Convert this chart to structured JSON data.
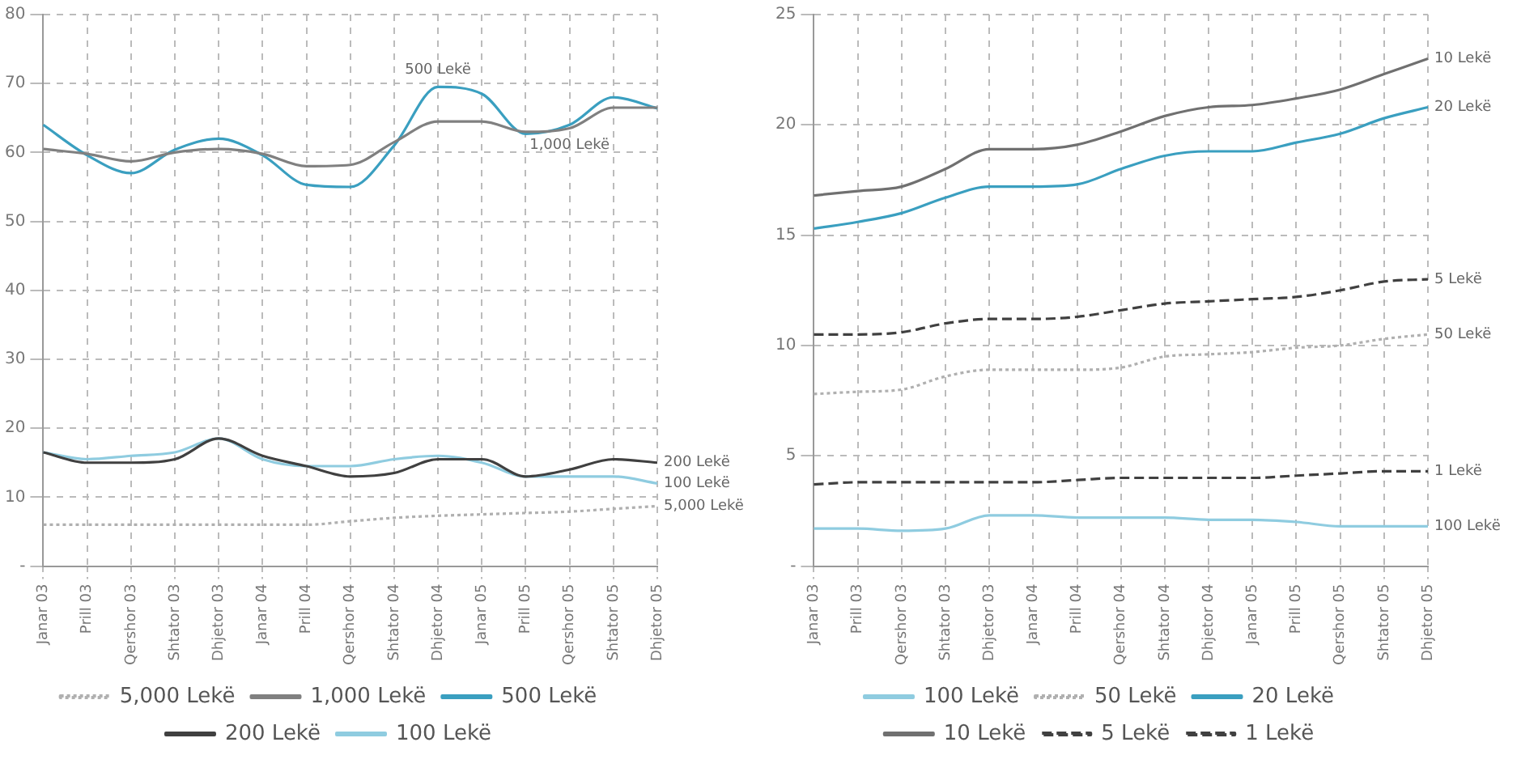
{
  "chart_data": [
    {
      "type": "line",
      "categories": [
        "Janar 03",
        "Prill 03",
        "Qershor 03",
        "Shtator 03",
        "Dhjetor 03",
        "Janar 04",
        "Prill 04",
        "Qershor 04",
        "Shtator 04",
        "Dhjetor 04",
        "Janar 05",
        "Prill 05",
        "Qershor 05",
        "Shtator 05",
        "Dhjetor 05"
      ],
      "series": [
        {
          "name": "5,000 Lekë",
          "color": "#b0b0b0",
          "line_style": "dotted",
          "values": [
            6,
            6,
            6,
            6,
            6,
            6,
            6,
            6.5,
            7,
            7.3,
            7.5,
            7.7,
            7.9,
            8.3,
            8.7
          ]
        },
        {
          "name": "1,000 Lekë",
          "color": "#808080",
          "line_style": "solid",
          "values": [
            60.5,
            59.8,
            58.7,
            60,
            60.5,
            59.8,
            58,
            58.2,
            61.5,
            64.5,
            64.5,
            63,
            63.5,
            66.5,
            66.5
          ]
        },
        {
          "name": "500 Lekë",
          "color": "#3a9fc0",
          "line_style": "solid",
          "values": [
            64,
            59.6,
            57,
            60.4,
            62,
            59.6,
            55.3,
            55,
            61,
            69.5,
            68.5,
            62.7,
            64,
            68,
            66.4
          ]
        },
        {
          "name": "200 Lekë",
          "color": "#404040",
          "line_style": "solid",
          "values": [
            16.5,
            15,
            15,
            15.5,
            18.5,
            16,
            14.5,
            13,
            13.5,
            15.5,
            15.5,
            13,
            14,
            15.5,
            15
          ]
        },
        {
          "name": "100 Lekë",
          "color": "#8fcce0",
          "line_style": "solid",
          "values": [
            16.5,
            15.5,
            16,
            16.5,
            18.5,
            15.5,
            14.5,
            14.5,
            15.5,
            16,
            15,
            13,
            13,
            13,
            12
          ]
        }
      ],
      "ylim": [
        0,
        80
      ],
      "yticks": [
        {
          "value": 0,
          "label": "-"
        },
        10,
        20,
        30,
        40,
        50,
        60,
        70,
        80
      ],
      "grid": true,
      "legend": "bottom",
      "marker": "none",
      "annotations": [
        {
          "text": "500 Lekë",
          "x": "Dhjetor 04",
          "y": 69.5
        },
        {
          "text": "1,000 Lekë",
          "x": "Qershor 05",
          "y": 63.5
        },
        {
          "text": "200 Lekë",
          "x": "Dhjetor 05",
          "y": 15
        },
        {
          "text": "100 Lekë",
          "x": "Dhjetor 05",
          "y": 12
        },
        {
          "text": "5,000 Lekë",
          "x": "Dhjetor 05",
          "y": 8.7
        }
      ]
    },
    {
      "type": "line",
      "categories": [
        "Janar 03",
        "Prill 03",
        "Qershor 03",
        "Shtator 03",
        "Dhjetor 03",
        "Janar 04",
        "Prill 04",
        "Qershor 04",
        "Shtator 04",
        "Dhjetor 04",
        "Janar 05",
        "Prill 05",
        "Qershor 05",
        "Shtator 05",
        "Dhjetor 05"
      ],
      "series": [
        {
          "name": "100 Lekë",
          "color": "#8fcce0",
          "line_style": "solid",
          "values": [
            1.7,
            1.7,
            1.6,
            1.7,
            2.3,
            2.3,
            2.2,
            2.2,
            2.2,
            2.1,
            2.1,
            2,
            1.8,
            1.8,
            1.8
          ]
        },
        {
          "name": "50 Lekë",
          "color": "#b0b0b0",
          "line_style": "dotted",
          "values": [
            7.8,
            7.9,
            8,
            8.6,
            8.9,
            8.9,
            8.9,
            9,
            9.5,
            9.6,
            9.7,
            9.9,
            10,
            10.3,
            10.5
          ]
        },
        {
          "name": "20 Lekë",
          "color": "#3a9fc0",
          "line_style": "solid",
          "values": [
            15.3,
            15.6,
            16,
            16.7,
            17.2,
            17.2,
            17.3,
            18,
            18.6,
            18.8,
            18.8,
            19.2,
            19.6,
            20.3,
            20.8
          ]
        },
        {
          "name": "10 Lekë",
          "color": "#707070",
          "line_style": "solid",
          "values": [
            16.8,
            17,
            17.2,
            18,
            18.9,
            18.9,
            19.1,
            19.7,
            20.4,
            20.8,
            20.9,
            21.2,
            21.6,
            22.3,
            23
          ]
        },
        {
          "name": "5 Lekë",
          "color": "#404040",
          "line_style": "dashed",
          "values": [
            10.5,
            10.5,
            10.6,
            11,
            11.2,
            11.2,
            11.3,
            11.6,
            11.9,
            12,
            12.1,
            12.2,
            12.5,
            12.9,
            13
          ]
        },
        {
          "name": "1 Lekë",
          "color": "#404040",
          "line_style": "dashed",
          "values": [
            3.7,
            3.8,
            3.8,
            3.8,
            3.8,
            3.8,
            3.9,
            4,
            4,
            4,
            4,
            4.1,
            4.2,
            4.3,
            4.3
          ]
        }
      ],
      "ylim": [
        0,
        25
      ],
      "yticks": [
        {
          "value": 0,
          "label": "-"
        },
        5,
        10,
        15,
        20,
        25
      ],
      "grid": true,
      "legend": "bottom",
      "marker": "none",
      "annotations": [
        {
          "text": "10 Lekë",
          "x": "Dhjetor 05",
          "y": 23
        },
        {
          "text": "20 Lekë",
          "x": "Dhjetor 05",
          "y": 20.8
        },
        {
          "text": "5 Lekë",
          "x": "Dhjetor 05",
          "y": 13
        },
        {
          "text": "50 Lekë",
          "x": "Dhjetor 05",
          "y": 10.5
        },
        {
          "text": "1 Lekë",
          "x": "Dhjetor 05",
          "y": 4.3
        },
        {
          "text": "100 Lekë",
          "x": "Dhjetor 05",
          "y": 1.8
        }
      ]
    }
  ]
}
